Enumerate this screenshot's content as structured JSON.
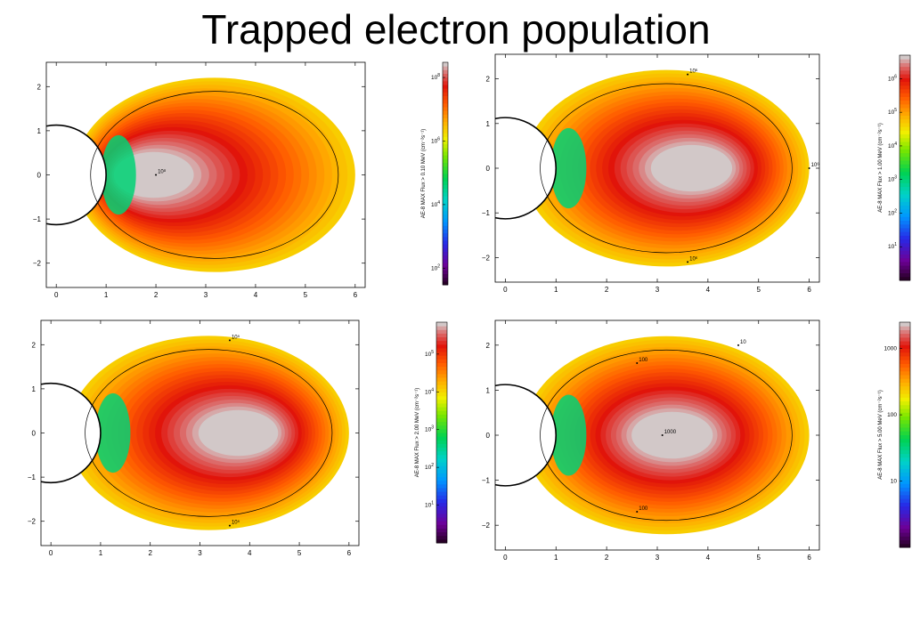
{
  "title": "Trapped electron population",
  "chart_data": [
    {
      "type": "heatmap",
      "energy_threshold_mev": 0.1,
      "colorbar_label": "AE-8 MAX Flux > 0.10 MeV (cm⁻²s⁻¹)",
      "colorbar_ticks": [
        {
          "exp": "2",
          "value": 100
        },
        {
          "exp": "4",
          "value": 10000
        },
        {
          "exp": "6",
          "value": 1000000
        },
        {
          "exp": "8",
          "value": 100000000
        }
      ],
      "colorbar_range": [
        30,
        300000000
      ],
      "xlim": [
        -0.2,
        6.2
      ],
      "ylim": [
        -2.55,
        2.55
      ],
      "xticks": [
        "0",
        "1",
        "2",
        "3",
        "4",
        "5",
        "6"
      ],
      "yticks": [
        "−2",
        "−1",
        "0",
        "1",
        "2"
      ],
      "peak_center_x": 1.9,
      "peak_flux": 300000000,
      "contours": [
        {
          "label": "10⁸",
          "x": 2.0,
          "y": 0
        }
      ]
    },
    {
      "type": "heatmap",
      "energy_threshold_mev": 1.0,
      "colorbar_label": "AE-8 MAX Flux > 1.00 MeV (cm⁻²s⁻¹)",
      "colorbar_ticks": [
        {
          "exp": "1",
          "value": 10
        },
        {
          "exp": "2",
          "value": 100
        },
        {
          "exp": "3",
          "value": 1000
        },
        {
          "exp": "4",
          "value": 10000
        },
        {
          "exp": "5",
          "value": 100000
        },
        {
          "exp": "6",
          "value": 1000000
        }
      ],
      "colorbar_range": [
        1,
        5000000
      ],
      "xlim": [
        -0.2,
        6.2
      ],
      "ylim": [
        -2.55,
        2.55
      ],
      "xticks": [
        "0",
        "1",
        "2",
        "3",
        "4",
        "5",
        "6"
      ],
      "yticks": [
        "−2",
        "−1",
        "0",
        "1",
        "2"
      ],
      "peak_center_x": 3.7,
      "peak_flux": 5000000,
      "contours": [
        {
          "label": "10⁶",
          "x": 3.6,
          "y": 2.1
        },
        {
          "label": "10⁶",
          "x": 6.0,
          "y": 0
        },
        {
          "label": "10⁶",
          "x": 3.6,
          "y": -2.1
        }
      ]
    },
    {
      "type": "heatmap",
      "energy_threshold_mev": 2.0,
      "colorbar_label": "AE-8 MAX Flux > 2.00 MeV (cm⁻²s⁻¹)",
      "colorbar_ticks": [
        {
          "exp": "1",
          "value": 10
        },
        {
          "exp": "2",
          "value": 100
        },
        {
          "exp": "3",
          "value": 1000
        },
        {
          "exp": "4",
          "value": 10000
        },
        {
          "exp": "5",
          "value": 100000
        }
      ],
      "colorbar_range": [
        1,
        700000
      ],
      "xlim": [
        -0.2,
        6.2
      ],
      "ylim": [
        -2.55,
        2.55
      ],
      "xticks": [
        "0",
        "1",
        "2",
        "3",
        "4",
        "5",
        "6"
      ],
      "yticks": [
        "−2",
        "−1",
        "0",
        "1",
        "2"
      ],
      "peak_center_x": 3.8,
      "peak_flux": 700000,
      "contours": [
        {
          "label": "10⁵",
          "x": 3.6,
          "y": 2.1
        },
        {
          "label": "10⁵",
          "x": 3.6,
          "y": -2.1
        }
      ]
    },
    {
      "type": "heatmap",
      "energy_threshold_mev": 5.0,
      "colorbar_label": "AE-8 MAX Flux > 5.00 MeV (cm⁻²s⁻¹)",
      "colorbar_ticks": [
        {
          "exp": "",
          "label": "10",
          "value": 10
        },
        {
          "exp": "",
          "label": "100",
          "value": 100
        },
        {
          "exp": "",
          "label": "1000",
          "value": 1000
        }
      ],
      "colorbar_range": [
        1,
        2500
      ],
      "xlim": [
        -0.2,
        6.2
      ],
      "ylim": [
        -2.55,
        2.55
      ],
      "xticks": [
        "0",
        "1",
        "2",
        "3",
        "4",
        "5",
        "6"
      ],
      "yticks": [
        "−2",
        "−1",
        "0",
        "1",
        "2"
      ],
      "peak_center_x": 3.3,
      "peak_flux": 2500,
      "contours": [
        {
          "label": "10",
          "x": 4.6,
          "y": 2.0
        },
        {
          "label": "100",
          "x": 2.6,
          "y": 1.6
        },
        {
          "label": "1000",
          "x": 3.1,
          "y": 0
        },
        {
          "label": "100",
          "x": 2.6,
          "y": -1.7
        }
      ]
    }
  ]
}
